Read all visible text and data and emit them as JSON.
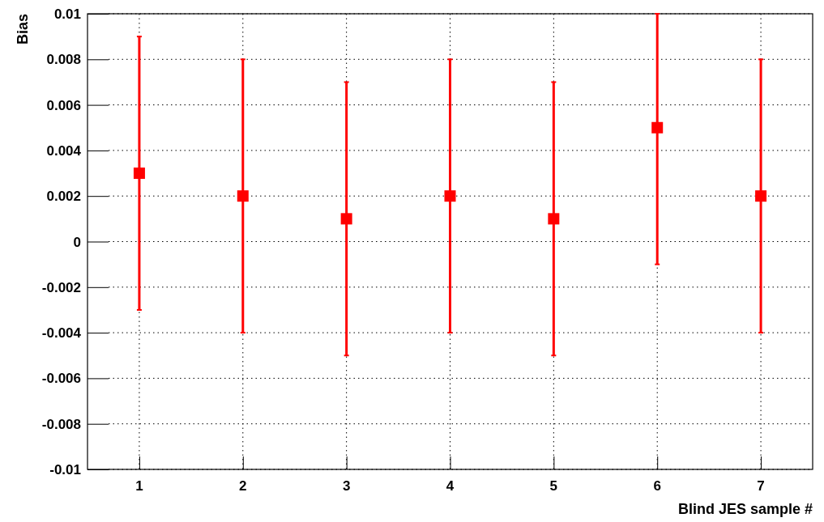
{
  "chart_data": {
    "type": "scatter",
    "xlabel": "Blind JES sample #",
    "ylabel": "Bias",
    "x": [
      1,
      2,
      3,
      4,
      5,
      6,
      7
    ],
    "series": [
      {
        "color": "#ff0000",
        "values": [
          0.003,
          0.002,
          0.001,
          0.002,
          0.001,
          0.005,
          0.002
        ],
        "errors": [
          0.006,
          0.006,
          0.006,
          0.006,
          0.006,
          [
            -0.001,
            0.01
          ],
          0.006
        ]
      }
    ],
    "xlim": [
      0.5,
      7.5
    ],
    "xticks": [
      1,
      2,
      3,
      4,
      5,
      6,
      7
    ],
    "ylim": [
      -0.01,
      0.01
    ],
    "yticks": [
      -0.01,
      -0.008,
      -0.006,
      -0.004,
      -0.002,
      0,
      0.002,
      0.004,
      0.006,
      0.008,
      0.01
    ],
    "grid": true,
    "marker": "square"
  }
}
